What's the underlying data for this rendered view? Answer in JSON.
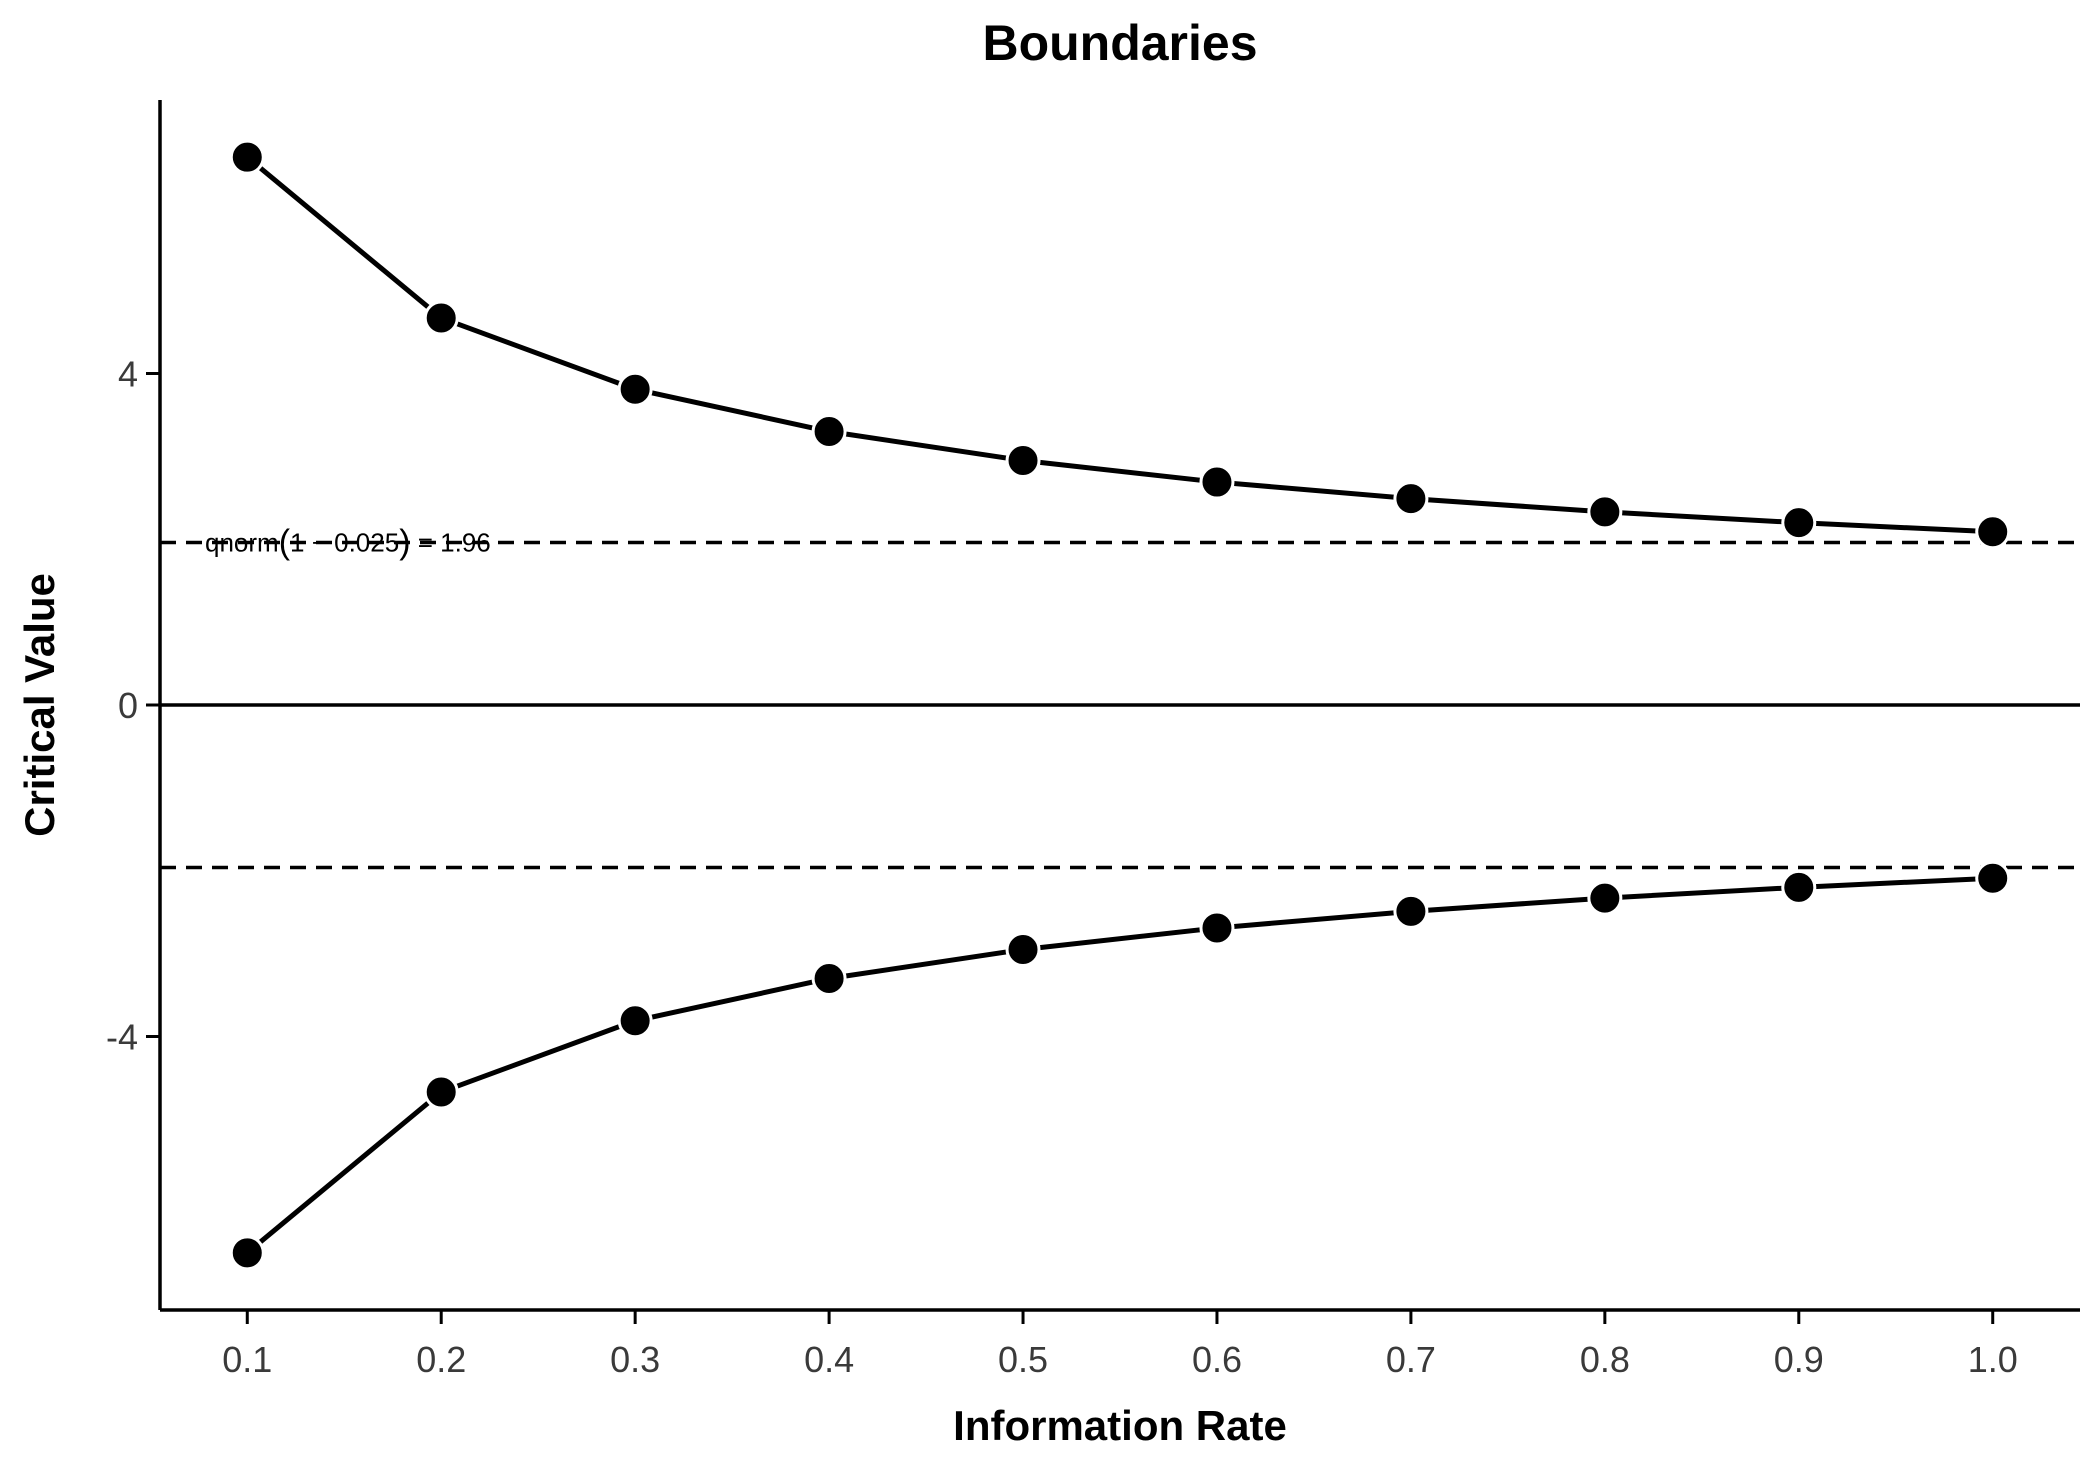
{
  "chart_data": {
    "type": "line",
    "title": "Boundaries",
    "xlabel": "Information Rate",
    "ylabel": "Critical Value",
    "x": [
      0.1,
      0.2,
      0.3,
      0.4,
      0.5,
      0.6,
      0.7,
      0.8,
      0.9,
      1.0
    ],
    "x_tick_labels": [
      "0.1",
      "0.2",
      "0.3",
      "0.4",
      "0.5",
      "0.6",
      "0.7",
      "0.8",
      "0.9",
      "1.0"
    ],
    "y_ticks": [
      -4,
      0,
      4
    ],
    "y_tick_labels": [
      "-4",
      "0",
      "4"
    ],
    "xlim": [
      0.055,
      1.045
    ],
    "ylim": [
      -7.3,
      7.3
    ],
    "series": [
      {
        "values": [
          6.61,
          4.67,
          3.81,
          3.3,
          2.95,
          2.69,
          2.49,
          2.33,
          2.2,
          2.09
        ]
      },
      {
        "values": [
          -6.61,
          -4.67,
          -3.81,
          -3.3,
          -2.95,
          -2.69,
          -2.49,
          -2.33,
          -2.2,
          -2.09
        ]
      }
    ],
    "reference_lines": [
      {
        "y": 1.96,
        "style": "dashed"
      },
      {
        "y": -1.96,
        "style": "dashed"
      },
      {
        "y": 0,
        "style": "solid"
      }
    ],
    "annotation": {
      "prefix": "qnorm",
      "paren_open": "(",
      "inner": "1 − 0.025",
      "paren_close": ")",
      "suffix": " = 1.96",
      "y": 1.96
    },
    "grid": false,
    "legend": "none",
    "colors": {
      "line": "#000000",
      "marker": "#000000",
      "marker_edge": "#ffffff"
    }
  }
}
